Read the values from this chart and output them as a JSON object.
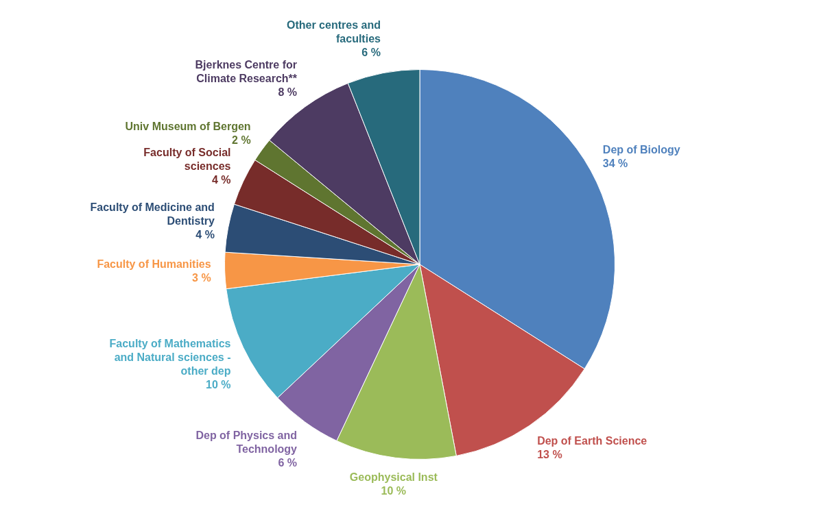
{
  "chart_data": {
    "type": "pie",
    "categories": [
      "Dep of Biology",
      "Dep of Earth Science",
      "Geophysical Inst",
      "Dep of Physics and Technology",
      "Faculty of Mathematics and Natural sciences - other dep",
      "Faculty of Humanities",
      "Faculty of Medicine and Dentistry",
      "Faculty of Social sciences",
      "Univ Museum of Bergen",
      "Bjerknes Centre for Climate Research**",
      "Other centres and faculties"
    ],
    "values": [
      34,
      13,
      10,
      6,
      10,
      3,
      4,
      4,
      2,
      8,
      6
    ],
    "value_labels": [
      "34 %",
      "13 %",
      "10 %",
      "6 %",
      "10 %",
      "3 %",
      "4 %",
      "4 %",
      "2 %",
      "8 %",
      "6 %"
    ],
    "colors": [
      "#4f81bd",
      "#c0504d",
      "#9bbb59",
      "#8064a2",
      "#4bacc6",
      "#f79646",
      "#2c4d75",
      "#772c2a",
      "#5f7530",
      "#4d3b62",
      "#276a7c"
    ],
    "legend": false
  }
}
